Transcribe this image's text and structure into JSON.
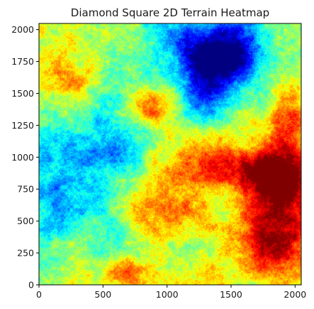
{
  "chart_data": {
    "type": "heatmap",
    "title": "Diamond Square 2D Terrain Heatmap",
    "xlabel": "",
    "ylabel": "",
    "xlim": [
      0,
      2048
    ],
    "ylim": [
      0,
      2048
    ],
    "xticks": [
      0,
      500,
      1000,
      1500,
      2000
    ],
    "yticks": [
      0,
      250,
      500,
      750,
      1000,
      1250,
      1500,
      1750,
      2000
    ],
    "colormap": "jet",
    "grid": false,
    "legend": "none",
    "features": [
      {
        "kind": "low",
        "x": 1500,
        "y": 1850,
        "sx": 210,
        "sy": 180,
        "amp": 1.0
      },
      {
        "kind": "low",
        "x": 1330,
        "y": 1720,
        "sx": 200,
        "sy": 170,
        "amp": 0.75
      },
      {
        "kind": "low",
        "x": 1280,
        "y": 1470,
        "sx": 120,
        "sy": 150,
        "amp": 0.55
      },
      {
        "kind": "low",
        "x": 1050,
        "y": 1950,
        "sx": 160,
        "sy": 140,
        "amp": 0.4
      },
      {
        "kind": "low",
        "x": 250,
        "y": 700,
        "sx": 340,
        "sy": 380,
        "amp": 0.45
      },
      {
        "kind": "low",
        "x": 550,
        "y": 1150,
        "sx": 260,
        "sy": 260,
        "amp": 0.35
      },
      {
        "kind": "high",
        "x": 1850,
        "y": 450,
        "sx": 200,
        "sy": 280,
        "amp": 1.0
      },
      {
        "kind": "high",
        "x": 1880,
        "y": 870,
        "sx": 160,
        "sy": 180,
        "amp": 0.85
      },
      {
        "kind": "high",
        "x": 1580,
        "y": 900,
        "sx": 260,
        "sy": 120,
        "amp": 0.65
      },
      {
        "kind": "high",
        "x": 1000,
        "y": 600,
        "sx": 220,
        "sy": 220,
        "amp": 0.55
      },
      {
        "kind": "high",
        "x": 850,
        "y": 1380,
        "sx": 140,
        "sy": 100,
        "amp": 0.45
      },
      {
        "kind": "high",
        "x": 680,
        "y": 100,
        "sx": 100,
        "sy": 90,
        "amp": 0.55
      },
      {
        "kind": "high",
        "x": 200,
        "y": 1600,
        "sx": 130,
        "sy": 150,
        "amp": 0.35
      },
      {
        "kind": "high",
        "x": 1950,
        "y": 1250,
        "sx": 130,
        "sy": 180,
        "amp": 0.5
      }
    ]
  }
}
